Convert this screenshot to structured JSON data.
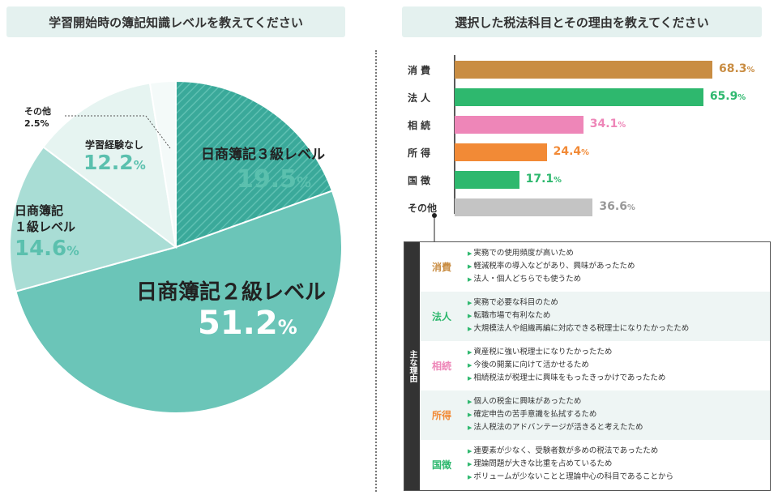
{
  "left": {
    "title": "学習開始時の簿記知識レベルを教えてください",
    "slices": [
      {
        "label": "日商簿記３級レベル",
        "value": "19.5",
        "color": "#3aa99a"
      },
      {
        "label": "日商簿記２級レベル",
        "value": "51.2",
        "color": "#6bc5b8"
      },
      {
        "label": "日商簿記\n１級レベル",
        "value": "14.6",
        "color": "#a9ddd5"
      },
      {
        "label": "学習経験なし",
        "value": "12.2",
        "color": "#e6f4f1"
      },
      {
        "label": "その他",
        "value": "2.5%",
        "color": "#f4faf9"
      }
    ]
  },
  "right": {
    "title": "選択した税法科目とその理由を教えてください",
    "bars": [
      {
        "label": "消費",
        "value": "68.3",
        "color": "#c98d43"
      },
      {
        "label": "法人",
        "value": "65.9",
        "color": "#2eb86e"
      },
      {
        "label": "相続",
        "value": "34.1",
        "color": "#ee86b8"
      },
      {
        "label": "所得",
        "value": "24.4",
        "color": "#f28a36"
      },
      {
        "label": "国徴",
        "value": "17.1",
        "color": "#2eb86e"
      },
      {
        "label": "その他",
        "value": "36.6",
        "color": "#c4c4c4"
      }
    ],
    "reasons_title": "主な理由",
    "reasons": [
      {
        "category": "消費",
        "color": "#c98d43",
        "items": [
          "実務での使用頻度が高いため",
          "軽減税率の導入などがあり、興味があったため",
          "法人・個人どちらでも使うため"
        ]
      },
      {
        "category": "法人",
        "color": "#2eb86e",
        "items": [
          "実務で必要な科目のため",
          "転職市場で有利なため",
          "大規模法人や組織再編に対応できる税理士になりたかったため"
        ]
      },
      {
        "category": "相続",
        "color": "#ee86b8",
        "items": [
          "資産税に強い税理士になりたかったため",
          "今後の開業に向けて活かせるため",
          "相続税法が税理士に興味をもったきっかけであったため"
        ]
      },
      {
        "category": "所得",
        "color": "#f28a36",
        "items": [
          "個人の税金に興味があったため",
          "確定申告の苦手意識を払拭するため",
          "法人税法のアドバンテージが活きると考えたため"
        ]
      },
      {
        "category": "国徴",
        "color": "#2eb86e",
        "items": [
          "連要素が少なく、受験者数が多めの税法であったため",
          "理論問題が大きな比重を占めているため",
          "ボリュームが少ないことと理論中心の科目であることから"
        ]
      }
    ]
  },
  "chart_data": [
    {
      "type": "pie",
      "title": "学習開始時の簿記知識レベルを教えてください",
      "categories": [
        "日商簿記３級レベル",
        "日商簿記２級レベル",
        "日商簿記１級レベル",
        "学習経験なし",
        "その他"
      ],
      "values": [
        19.5,
        51.2,
        14.6,
        12.2,
        2.5
      ],
      "unit": "%"
    },
    {
      "type": "bar",
      "title": "選択した税法科目とその理由を教えてください",
      "orientation": "horizontal",
      "categories": [
        "消費",
        "法人",
        "相続",
        "所得",
        "国徴",
        "その他"
      ],
      "values": [
        68.3,
        65.9,
        34.1,
        24.4,
        17.1,
        36.6
      ],
      "unit": "%"
    }
  ]
}
